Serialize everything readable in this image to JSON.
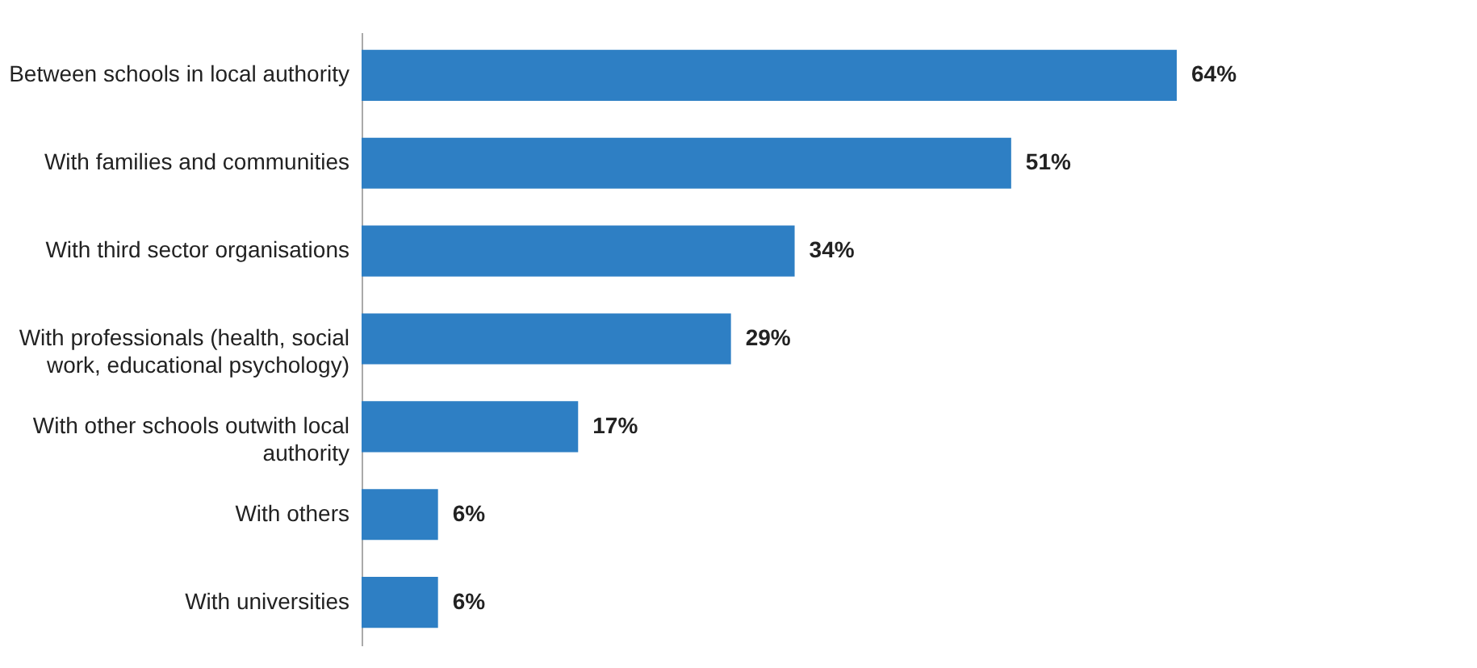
{
  "chart_data": {
    "type": "bar",
    "orientation": "horizontal",
    "categories": [
      "Between schools in local authority",
      "With families and communities",
      "With third sector organisations",
      "With professionals (health, social work, educational psychology)",
      "With other schools outwith local authority",
      "With others",
      "With universities"
    ],
    "values": [
      64,
      51,
      34,
      29,
      17,
      6,
      6
    ],
    "value_labels": [
      "64%",
      "51%",
      "34%",
      "29%",
      "17%",
      "6%",
      "6%"
    ],
    "color": "#2e7fc4"
  }
}
